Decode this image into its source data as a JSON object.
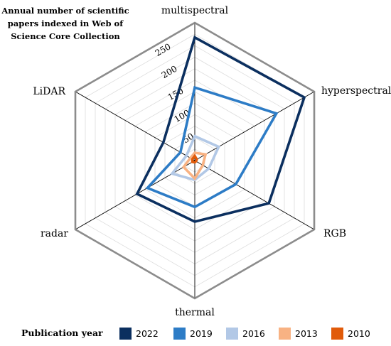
{
  "chart_data": {
    "type": "radar",
    "title_lines": [
      "Annual number of scientific",
      "papers indexed in Web of",
      "Science Core Collection"
    ],
    "axes": [
      "multispectral",
      "hyperspectral",
      "RGB",
      "thermal",
      "radar",
      "LiDAR"
    ],
    "radial_ticks": [
      50,
      100,
      150,
      200,
      250
    ],
    "rmax": 300,
    "legend_title": "Publication year",
    "legend_position": "bottom",
    "grid": true,
    "series": [
      {
        "name": "2022",
        "color": "#0b2f5f",
        "values": [
          268,
          275,
          186,
          133,
          145,
          79
        ]
      },
      {
        "name": "2019",
        "color": "#2d7cc6",
        "values": [
          159,
          205,
          103,
          101,
          119,
          36
        ]
      },
      {
        "name": "2016",
        "color": "#b2c8e6",
        "values": [
          53,
          60,
          35,
          42,
          57,
          21
        ]
      },
      {
        "name": "2013",
        "color": "#f8b283",
        "values": [
          17,
          27,
          20,
          39,
          28,
          11
        ]
      },
      {
        "name": "2010",
        "color": "#e15b0a",
        "values": [
          10,
          5,
          3,
          4,
          6,
          6
        ]
      }
    ]
  }
}
